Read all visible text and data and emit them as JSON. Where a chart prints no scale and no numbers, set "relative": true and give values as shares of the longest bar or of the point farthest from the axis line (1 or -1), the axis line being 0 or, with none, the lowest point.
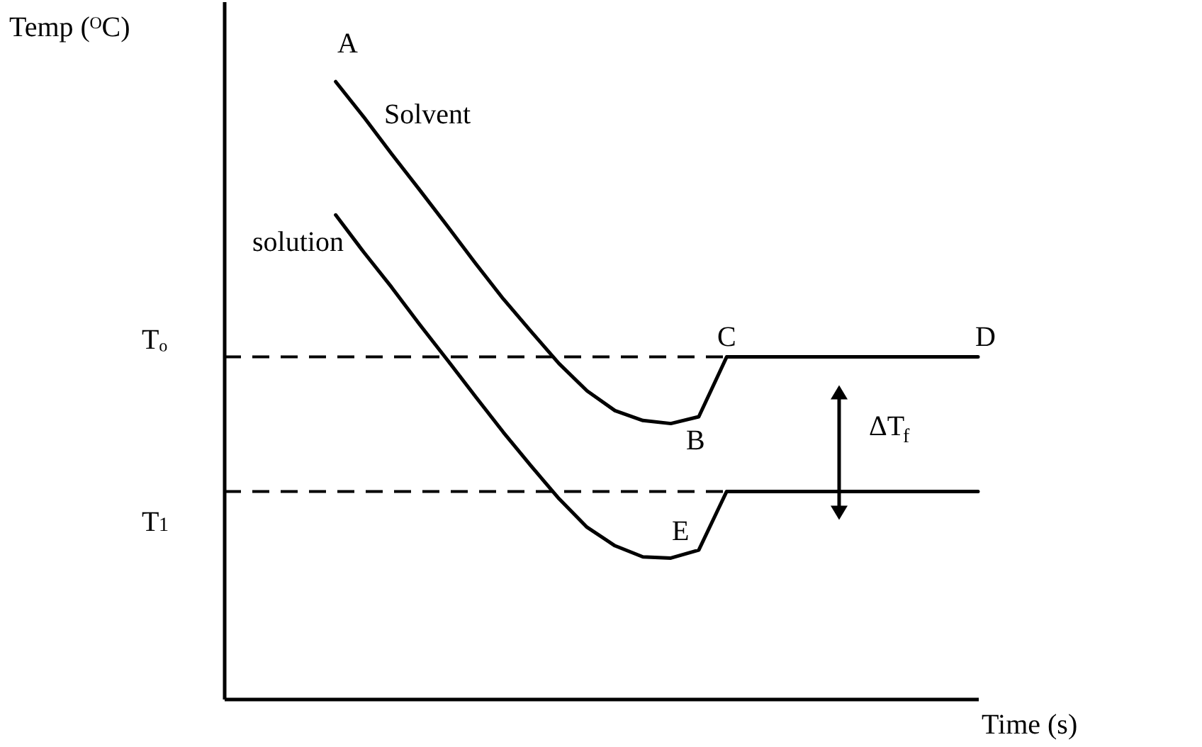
{
  "chart_data": {
    "type": "line",
    "relative": true,
    "xlabel": "Time (s)",
    "ylabel": "Temp (ᴼC)",
    "ylim": [
      0,
      1.13
    ],
    "marker": "none",
    "line_style": "solid",
    "categories": [
      null,
      null,
      null,
      null,
      null,
      null,
      null,
      null,
      null,
      null,
      null,
      null,
      null,
      null,
      null,
      null,
      null,
      null,
      null,
      null,
      null,
      null,
      null,
      null,
      null,
      null,
      null,
      null
    ],
    "series": [
      {
        "color": "#000000",
        "values": [
          null,
          null,
          null,
          null,
          1,
          0.943,
          0.883,
          0.825,
          0.766,
          0.706,
          0.648,
          0.595,
          0.543,
          0.499,
          0.467,
          0.451,
          0.446,
          0.457,
          0.554,
          0.554,
          0.554,
          0.554,
          0.554,
          0.554,
          0.554,
          0.554,
          0.554,
          0.554
        ]
      },
      {
        "color": "#000000",
        "values": [
          null,
          null,
          null,
          null,
          0.784,
          0.724,
          0.667,
          0.607,
          0.549,
          0.49,
          0.432,
          0.377,
          0.324,
          0.278,
          0.248,
          0.23,
          0.228,
          0.241,
          0.336,
          0.336,
          0.336,
          0.336,
          0.336,
          0.336,
          0.336,
          0.336,
          0.336,
          0.336
        ]
      }
    ],
    "ref_lines": [
      {
        "axis": "y",
        "value": 0.554,
        "label": "Tₒ",
        "line_style": "dashed",
        "color": "#000000"
      },
      {
        "axis": "y",
        "value": 0.336,
        "label": "T$_{1}$",
        "line_style": "dashed",
        "color": "#000000"
      }
    ],
    "annotations": [
      "A",
      "Solvent",
      "solution",
      "B",
      "C",
      "D",
      "E",
      "ΔT$_{f}$"
    ]
  }
}
